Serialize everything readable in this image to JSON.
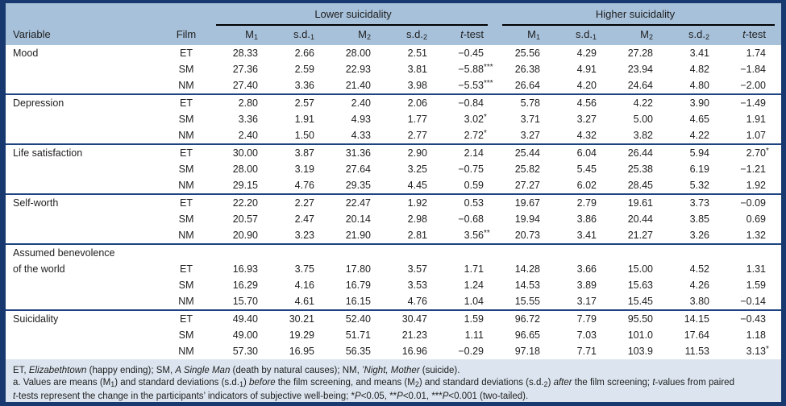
{
  "header": {
    "variable_label": "Variable",
    "film_label": "Film",
    "group_lower": "Lower suicidality",
    "group_higher": "Higher suicidality",
    "subcols": [
      [
        {
          "t": "M"
        },
        {
          "t": "1",
          "sub": true
        }
      ],
      [
        {
          "t": "s.d."
        },
        {
          "t": "1",
          "sub": true
        }
      ],
      [
        {
          "t": "M"
        },
        {
          "t": "2",
          "sub": true
        }
      ],
      [
        {
          "t": "s.d."
        },
        {
          "t": "2",
          "sub": true
        }
      ],
      [
        {
          "t": "t",
          "i": true
        },
        {
          "t": "-test"
        }
      ]
    ]
  },
  "body": {
    "groups": [
      {
        "label_lines": [
          "Mood"
        ],
        "rows": [
          {
            "film": "ET",
            "values": [
              "28.33",
              "2.66",
              "28.00",
              "2.51",
              "−0.45",
              "25.56",
              "4.29",
              "27.28",
              "3.41",
              "1.74"
            ]
          },
          {
            "film": "SM",
            "values": [
              "27.36",
              "2.59",
              "22.93",
              "3.81",
              {
                "v": "−5.88",
                "s": "***"
              },
              "26.38",
              "4.91",
              "23.94",
              "4.82",
              "−1.84"
            ]
          },
          {
            "film": "NM",
            "values": [
              "27.40",
              "3.36",
              "21.40",
              "3.98",
              {
                "v": "−5.53",
                "s": "***"
              },
              "26.64",
              "4.20",
              "24.64",
              "4.80",
              "−2.00"
            ]
          }
        ]
      },
      {
        "label_lines": [
          "Depression"
        ],
        "rows": [
          {
            "film": "ET",
            "values": [
              "2.80",
              "2.57",
              "2.40",
              "2.06",
              "−0.84",
              "5.78",
              "4.56",
              "4.22",
              "3.90",
              "−1.49"
            ]
          },
          {
            "film": "SM",
            "values": [
              "3.36",
              "1.91",
              "4.93",
              "1.77",
              {
                "v": "3.02",
                "s": "*"
              },
              "3.71",
              "3.27",
              "5.00",
              "4.65",
              "1.91"
            ]
          },
          {
            "film": "NM",
            "values": [
              "2.40",
              "1.50",
              "4.33",
              "2.77",
              {
                "v": "2.72",
                "s": "*"
              },
              "3.27",
              "4.32",
              "3.82",
              "4.22",
              "1.07"
            ]
          }
        ]
      },
      {
        "label_lines": [
          "Life satisfaction"
        ],
        "rows": [
          {
            "film": "ET",
            "values": [
              "30.00",
              "3.87",
              "31.36",
              "2.90",
              "2.14",
              "25.44",
              "6.04",
              "26.44",
              "5.94",
              {
                "v": "2.70",
                "s": "*"
              }
            ]
          },
          {
            "film": "SM",
            "values": [
              "28.00",
              "3.19",
              "27.64",
              "3.25",
              "−0.75",
              "25.82",
              "5.45",
              "25.38",
              "6.19",
              "−1.21"
            ]
          },
          {
            "film": "NM",
            "values": [
              "29.15",
              "4.76",
              "29.35",
              "4.45",
              "0.59",
              "27.27",
              "6.02",
              "28.45",
              "5.32",
              "1.92"
            ]
          }
        ]
      },
      {
        "label_lines": [
          "Self-worth"
        ],
        "rows": [
          {
            "film": "ET",
            "values": [
              "22.20",
              "2.27",
              "22.47",
              "1.92",
              "0.53",
              "19.67",
              "2.79",
              "19.61",
              "3.73",
              "−0.09"
            ]
          },
          {
            "film": "SM",
            "values": [
              "20.57",
              "2.47",
              "20.14",
              "2.98",
              "−0.68",
              "19.94",
              "3.86",
              "20.44",
              "3.85",
              "0.69"
            ]
          },
          {
            "film": "NM",
            "values": [
              "20.90",
              "3.23",
              "21.90",
              "2.81",
              {
                "v": "3.56",
                "s": "**"
              },
              "20.73",
              "3.41",
              "21.27",
              "3.26",
              "1.32"
            ]
          }
        ]
      },
      {
        "label_lines": [
          "Assumed benevolence",
          "of the world"
        ],
        "rows": [
          {
            "film": "ET",
            "values": [
              "16.93",
              "3.75",
              "17.80",
              "3.57",
              "1.71",
              "14.28",
              "3.66",
              "15.00",
              "4.52",
              "1.31"
            ]
          },
          {
            "film": "SM",
            "values": [
              "16.29",
              "4.16",
              "16.79",
              "3.53",
              "1.24",
              "14.53",
              "3.89",
              "15.63",
              "4.26",
              "1.59"
            ]
          },
          {
            "film": "NM",
            "values": [
              "15.70",
              "4.61",
              "16.15",
              "4.76",
              "1.04",
              "15.55",
              "3.17",
              "15.45",
              "3.80",
              "−0.14"
            ]
          }
        ]
      },
      {
        "label_lines": [
          "Suicidality"
        ],
        "rows": [
          {
            "film": "ET",
            "values": [
              "49.40",
              "30.21",
              "52.40",
              "30.47",
              "1.59",
              "96.72",
              "7.79",
              "95.50",
              "14.15",
              "−0.43"
            ]
          },
          {
            "film": "SM",
            "values": [
              "49.00",
              "19.29",
              "51.71",
              "21.23",
              "1.11",
              "96.65",
              "7.03",
              "101.0",
              "17.64",
              "1.18"
            ]
          },
          {
            "film": "NM",
            "values": [
              "57.30",
              "16.95",
              "56.35",
              "16.96",
              "−0.29",
              "97.18",
              "7.71",
              "103.9",
              "11.53",
              {
                "v": "3.13",
                "s": "*"
              }
            ]
          }
        ]
      }
    ]
  },
  "footnotes": {
    "lines": [
      [
        {
          "t": "ET, "
        },
        {
          "t": "Elizabethtown",
          "i": true
        },
        {
          "t": " (happy ending); SM, "
        },
        {
          "t": "A Single Man",
          "i": true
        },
        {
          "t": " (death by natural causes); NM, "
        },
        {
          "t": "’Night, Mother",
          "i": true
        },
        {
          "t": " (suicide)."
        }
      ],
      [
        {
          "t": "a. Values are means (M"
        },
        {
          "t": "1",
          "sub": true
        },
        {
          "t": ") and standard deviations (s.d."
        },
        {
          "t": "1",
          "sub": true
        },
        {
          "t": ") "
        },
        {
          "t": "before",
          "i": true
        },
        {
          "t": " the film screening, and means (M"
        },
        {
          "t": "2",
          "sub": true
        },
        {
          "t": ") and standard deviations (s.d."
        },
        {
          "t": "2",
          "sub": true
        },
        {
          "t": ") "
        },
        {
          "t": "after",
          "i": true
        },
        {
          "t": " the film screening; "
        },
        {
          "t": "t",
          "i": true
        },
        {
          "t": "-values from paired"
        }
      ],
      [
        {
          "t": "t",
          "i": true
        },
        {
          "t": "-tests represent the change in the participants’ indicators of subjective well-being; *"
        },
        {
          "t": "P",
          "i": true
        },
        {
          "t": "<0.05, **"
        },
        {
          "t": "P",
          "i": true
        },
        {
          "t": "<0.01, ***"
        },
        {
          "t": "P",
          "i": true
        },
        {
          "t": "<0.001 (two-tailed)."
        }
      ]
    ]
  },
  "colors": {
    "border_navy": "#17396f",
    "header_band": "#a7c1da",
    "footnote_band": "#dce5ef",
    "divider": "#1d4480",
    "rule_black": "#000000"
  }
}
